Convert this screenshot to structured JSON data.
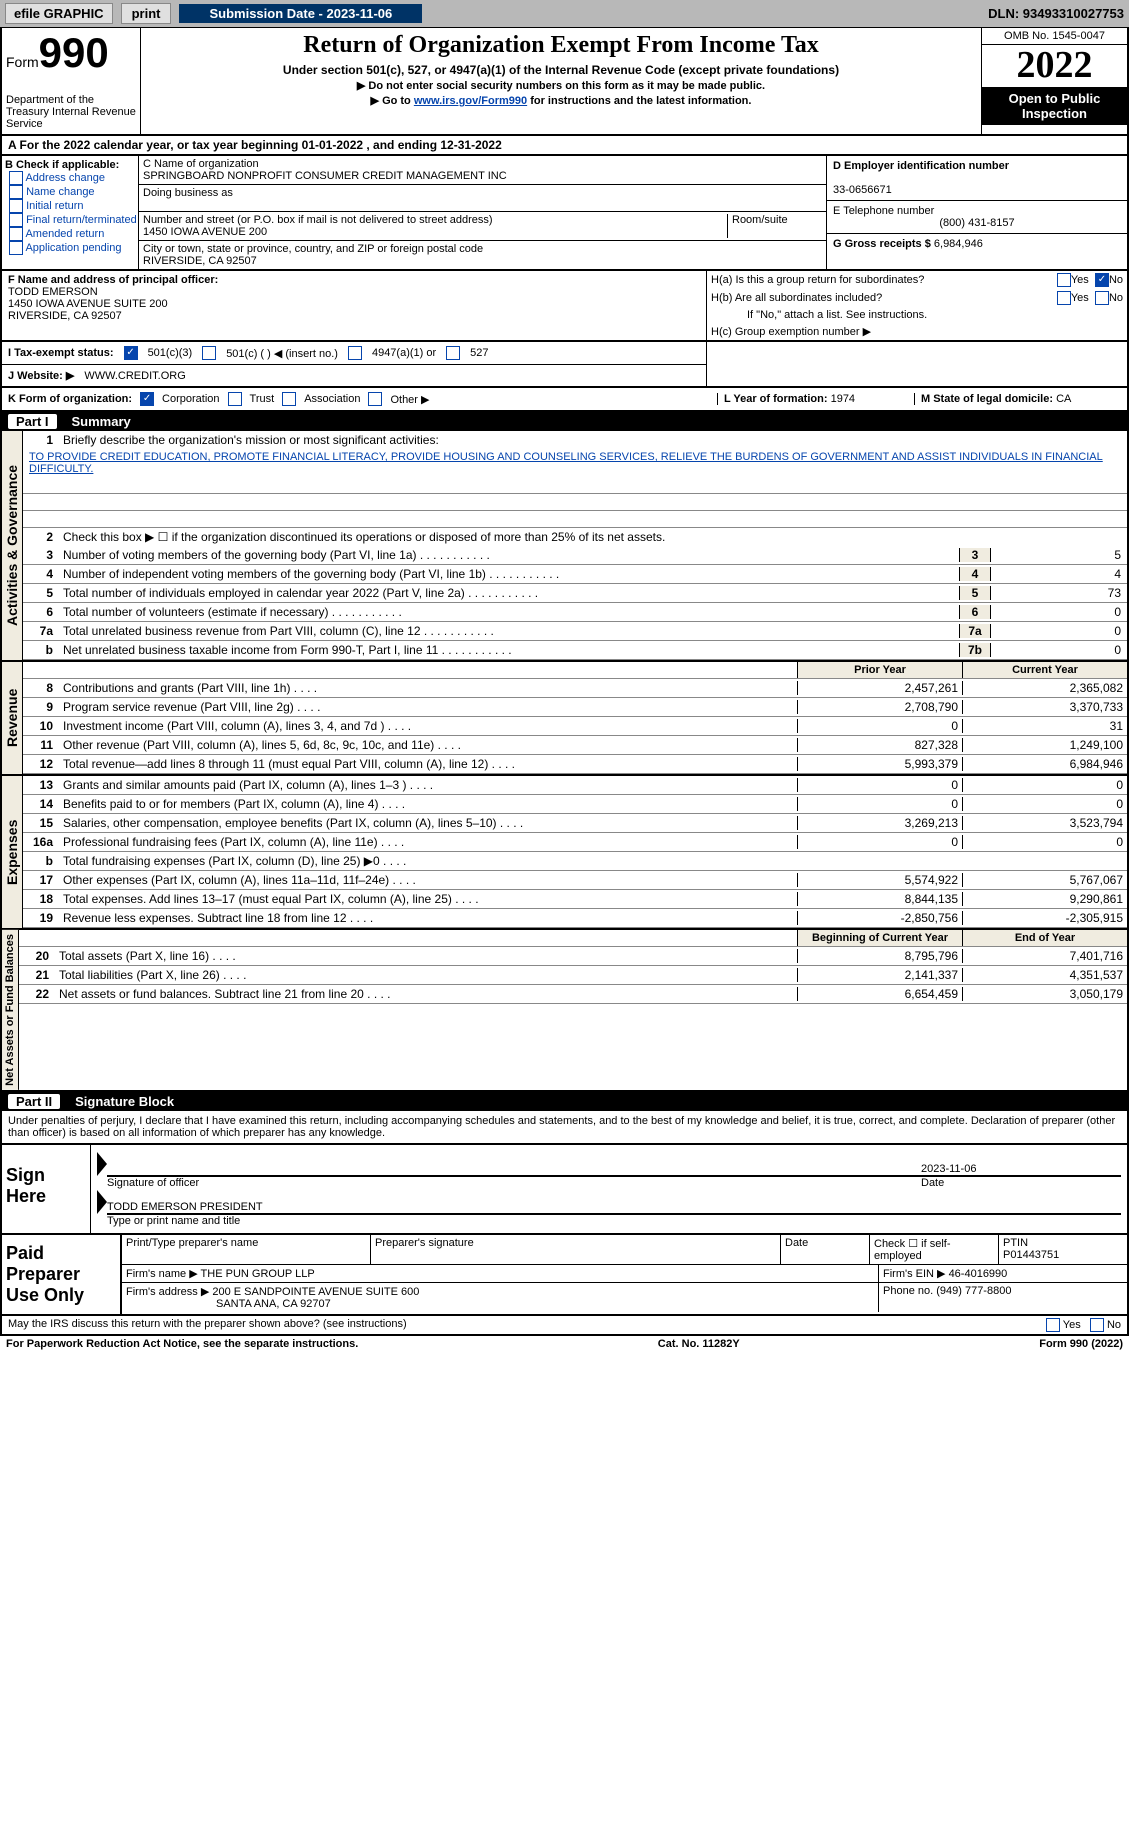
{
  "top": {
    "efile": "efile GRAPHIC",
    "print": "print",
    "submission_label": "Submission Date - 2023-11-06",
    "dln": "DLN: 93493310027753"
  },
  "header": {
    "form_prefix": "Form",
    "form_number": "990",
    "dept": "Department of the Treasury Internal Revenue Service",
    "title": "Return of Organization Exempt From Income Tax",
    "subtitle": "Under section 501(c), 527, or 4947(a)(1) of the Internal Revenue Code (except private foundations)",
    "inst1": "▶ Do not enter social security numbers on this form as it may be made public.",
    "inst2_pre": "▶ Go to ",
    "inst2_link": "www.irs.gov/Form990",
    "inst2_post": " for instructions and the latest information.",
    "omb": "OMB No. 1545-0047",
    "year": "2022",
    "open": "Open to Public Inspection"
  },
  "calendar": "A For the 2022 calendar year, or tax year beginning 01-01-2022     , and ending 12-31-2022",
  "sectionB": {
    "label": "B Check if applicable:",
    "items": [
      "Address change",
      "Name change",
      "Initial return",
      "Final return/terminated",
      "Amended return",
      "Application pending"
    ]
  },
  "sectionC": {
    "name_label": "C Name of organization",
    "name": "SPRINGBOARD NONPROFIT CONSUMER CREDIT MANAGEMENT INC",
    "dba_label": "Doing business as",
    "addr_label": "Number and street (or P.O. box if mail is not delivered to street address)",
    "room_label": "Room/suite",
    "addr": "1450 IOWA AVENUE 200",
    "city_label": "City or town, state or province, country, and ZIP or foreign postal code",
    "city": "RIVERSIDE, CA  92507"
  },
  "sectionD": {
    "label": "D Employer identification number",
    "ein": "33-0656671"
  },
  "sectionE": {
    "label": "E Telephone number",
    "phone": "(800) 431-8157"
  },
  "sectionG": {
    "label": "G Gross receipts $",
    "amount": "6,984,946"
  },
  "sectionF": {
    "label": "F Name and address of principal officer:",
    "name": "TODD EMERSON",
    "addr": "1450 IOWA AVENUE SUITE 200",
    "city": "RIVERSIDE, CA  92507"
  },
  "sectionH": {
    "h_a": "H(a)  Is this a group return for subordinates?",
    "h_b": "H(b)  Are all subordinates included?",
    "h_b_note": "If \"No,\" attach a list. See instructions.",
    "h_c": "H(c)  Group exemption number ▶",
    "yes": "Yes",
    "no": "No"
  },
  "sectionI": {
    "label": "I  Tax-exempt status:",
    "opt1": "501(c)(3)",
    "opt2": "501(c) (    ) ◀ (insert no.)",
    "opt3": "4947(a)(1) or",
    "opt4": "527"
  },
  "sectionJ": {
    "label": "J  Website: ▶",
    "url": "WWW.CREDIT.ORG"
  },
  "sectionK": {
    "label": "K Form of organization:",
    "corp": "Corporation",
    "trust": "Trust",
    "assoc": "Association",
    "other": "Other ▶"
  },
  "sectionL": {
    "label": "L Year of formation:",
    "year": "1974"
  },
  "sectionM": {
    "label": "M State of legal domicile:",
    "state": "CA"
  },
  "part1": {
    "header": "Part I",
    "title": "Summary",
    "vtext_ag": "Activities & Governance",
    "vtext_rev": "Revenue",
    "vtext_exp": "Expenses",
    "vtext_net": "Net Assets or Fund Balances",
    "line1": "Briefly describe the organization's mission or most significant activities:",
    "mission": "TO PROVIDE CREDIT EDUCATION, PROMOTE FINANCIAL LITERACY, PROVIDE HOUSING AND COUNSELING SERVICES, RELIEVE THE BURDENS OF GOVERNMENT AND ASSIST INDIVIDUALS IN FINANCIAL DIFFICULTY.",
    "line2": "Check this box ▶ ☐ if the organization discontinued its operations or disposed of more than 25% of its net assets.",
    "lines": [
      {
        "n": "3",
        "t": "Number of voting members of the governing body (Part VI, line 1a)",
        "box": "3",
        "v": "5"
      },
      {
        "n": "4",
        "t": "Number of independent voting members of the governing body (Part VI, line 1b)",
        "box": "4",
        "v": "4"
      },
      {
        "n": "5",
        "t": "Total number of individuals employed in calendar year 2022 (Part V, line 2a)",
        "box": "5",
        "v": "73"
      },
      {
        "n": "6",
        "t": "Total number of volunteers (estimate if necessary)",
        "box": "6",
        "v": "0"
      },
      {
        "n": "7a",
        "t": "Total unrelated business revenue from Part VIII, column (C), line 12",
        "box": "7a",
        "v": "0"
      },
      {
        "n": "b",
        "t": "Net unrelated business taxable income from Form 990-T, Part I, line 11",
        "box": "7b",
        "v": "0"
      }
    ],
    "col_prior": "Prior Year",
    "col_current": "Current Year",
    "col_beg": "Beginning of Current Year",
    "col_end": "End of Year",
    "revenue": [
      {
        "n": "8",
        "t": "Contributions and grants (Part VIII, line 1h)",
        "p": "2,457,261",
        "c": "2,365,082"
      },
      {
        "n": "9",
        "t": "Program service revenue (Part VIII, line 2g)",
        "p": "2,708,790",
        "c": "3,370,733"
      },
      {
        "n": "10",
        "t": "Investment income (Part VIII, column (A), lines 3, 4, and 7d )",
        "p": "0",
        "c": "31"
      },
      {
        "n": "11",
        "t": "Other revenue (Part VIII, column (A), lines 5, 6d, 8c, 9c, 10c, and 11e)",
        "p": "827,328",
        "c": "1,249,100"
      },
      {
        "n": "12",
        "t": "Total revenue—add lines 8 through 11 (must equal Part VIII, column (A), line 12)",
        "p": "5,993,379",
        "c": "6,984,946"
      }
    ],
    "expenses": [
      {
        "n": "13",
        "t": "Grants and similar amounts paid (Part IX, column (A), lines 1–3 )",
        "p": "0",
        "c": "0"
      },
      {
        "n": "14",
        "t": "Benefits paid to or for members (Part IX, column (A), line 4)",
        "p": "0",
        "c": "0"
      },
      {
        "n": "15",
        "t": "Salaries, other compensation, employee benefits (Part IX, column (A), lines 5–10)",
        "p": "3,269,213",
        "c": "3,523,794"
      },
      {
        "n": "16a",
        "t": "Professional fundraising fees (Part IX, column (A), line 11e)",
        "p": "0",
        "c": "0"
      },
      {
        "n": "b",
        "t": "Total fundraising expenses (Part IX, column (D), line 25) ▶0",
        "p": "shaded",
        "c": "shaded"
      },
      {
        "n": "17",
        "t": "Other expenses (Part IX, column (A), lines 11a–11d, 11f–24e)",
        "p": "5,574,922",
        "c": "5,767,067"
      },
      {
        "n": "18",
        "t": "Total expenses. Add lines 13–17 (must equal Part IX, column (A), line 25)",
        "p": "8,844,135",
        "c": "9,290,861"
      },
      {
        "n": "19",
        "t": "Revenue less expenses. Subtract line 18 from line 12",
        "p": "-2,850,756",
        "c": "-2,305,915"
      }
    ],
    "netassets": [
      {
        "n": "20",
        "t": "Total assets (Part X, line 16)",
        "p": "8,795,796",
        "c": "7,401,716"
      },
      {
        "n": "21",
        "t": "Total liabilities (Part X, line 26)",
        "p": "2,141,337",
        "c": "4,351,537"
      },
      {
        "n": "22",
        "t": "Net assets or fund balances. Subtract line 21 from line 20",
        "p": "6,654,459",
        "c": "3,050,179"
      }
    ]
  },
  "part2": {
    "header": "Part II",
    "title": "Signature Block",
    "penalty": "Under penalties of perjury, I declare that I have examined this return, including accompanying schedules and statements, and to the best of my knowledge and belief, it is true, correct, and complete. Declaration of preparer (other than officer) is based on all information of which preparer has any knowledge.",
    "sign_label": "Sign Here",
    "sig_officer": "Signature of officer",
    "date": "Date",
    "sig_date": "2023-11-06",
    "officer_name": "TODD EMERSON PRESIDENT",
    "type_name": "Type or print name and title"
  },
  "preparer": {
    "label": "Paid Preparer Use Only",
    "print_name_label": "Print/Type preparer's name",
    "sig_label": "Preparer's signature",
    "date_label": "Date",
    "check_label": "Check ☐ if self-employed",
    "ptin_label": "PTIN",
    "ptin": "P01443751",
    "firm_name_label": "Firm's name  ▶",
    "firm_name": "THE PUN GROUP LLP",
    "firm_ein_label": "Firm's EIN ▶",
    "firm_ein": "46-4016990",
    "firm_addr_label": "Firm's address ▶",
    "firm_addr": "200 E SANDPOINTE AVENUE SUITE 600",
    "firm_city": "SANTA ANA, CA  92707",
    "phone_label": "Phone no.",
    "phone": "(949) 777-8800"
  },
  "footer": {
    "discuss": "May the IRS discuss this return with the preparer shown above? (see instructions)",
    "paperwork": "For Paperwork Reduction Act Notice, see the separate instructions.",
    "catno": "Cat. No. 11282Y",
    "formrev": "Form 990 (2022)"
  }
}
